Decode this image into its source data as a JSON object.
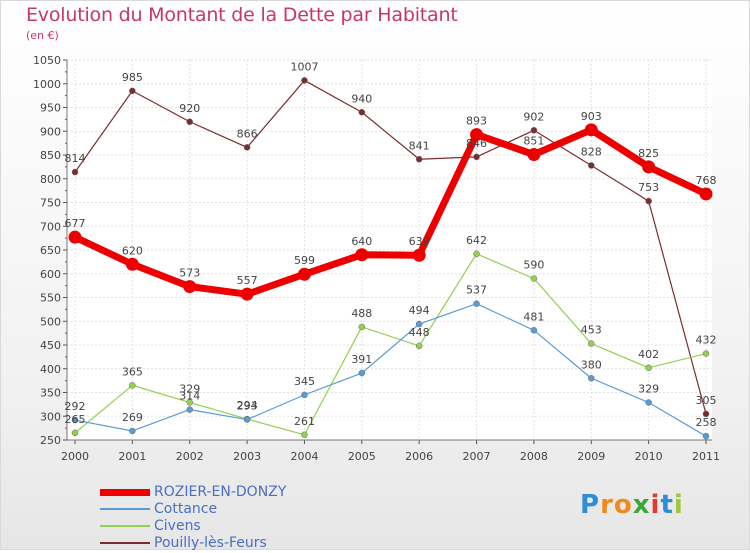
{
  "title": "Evolution du Montant de la Dette par Habitant",
  "unit": "(en €)",
  "logo": {
    "letters": [
      "P",
      "r",
      "o",
      "x",
      "i",
      "t",
      "i"
    ],
    "colors": [
      "#2a8fd6",
      "#f08a1c",
      "#f08a1c",
      "#3aa83a",
      "#e03a2a",
      "#2a8fd6",
      "#9ac93a"
    ]
  },
  "chart_data": {
    "type": "line",
    "title": "Evolution du Montant de la Dette par Habitant",
    "ylabel": "(en €)",
    "xlabel": "",
    "x": [
      "2000",
      "2001",
      "2002",
      "2003",
      "2004",
      "2005",
      "2006",
      "2007",
      "2008",
      "2009",
      "2010",
      "2011"
    ],
    "ylim": [
      250,
      1050
    ],
    "yticks": [
      250,
      300,
      350,
      400,
      450,
      500,
      550,
      600,
      650,
      700,
      750,
      800,
      850,
      900,
      950,
      1000,
      1050
    ],
    "grid": true,
    "legend": "bottom-left",
    "series": [
      {
        "name": "ROZIER-EN-DONZY",
        "color": "#ee0000",
        "emphasis": true,
        "values": [
          677,
          620,
          573,
          557,
          599,
          640,
          639,
          893,
          851,
          903,
          825,
          768
        ],
        "labels": [
          "677",
          "620",
          "573",
          "557",
          "599",
          "640",
          "639",
          "893",
          "851",
          "903",
          "825",
          "768"
        ]
      },
      {
        "name": "Cottance",
        "color": "#5b9bd5",
        "values": [
          292,
          269,
          314,
          293,
          345,
          391,
          494,
          537,
          481,
          380,
          329,
          258
        ],
        "labels": [
          "292",
          "269",
          "314",
          "293",
          "345",
          "391",
          "494",
          "537",
          "481",
          "380",
          "329",
          "258"
        ]
      },
      {
        "name": "Civens",
        "color": "#92d050",
        "values": [
          265,
          365,
          329,
          294,
          261,
          488,
          448,
          642,
          590,
          453,
          402,
          432
        ],
        "labels": [
          "265",
          "365",
          "329",
          "294",
          "261",
          "488",
          "448",
          "642",
          "590",
          "453",
          "402",
          "432"
        ]
      },
      {
        "name": "Pouilly-lès-Feurs",
        "color": "#7b2c2c",
        "values": [
          814,
          985,
          920,
          866,
          1007,
          940,
          841,
          846,
          902,
          828,
          753,
          305
        ],
        "labels": [
          "814",
          "985",
          "920",
          "866",
          "1007",
          "940",
          "841",
          "846",
          "902",
          "828",
          "753",
          "305"
        ]
      }
    ]
  }
}
